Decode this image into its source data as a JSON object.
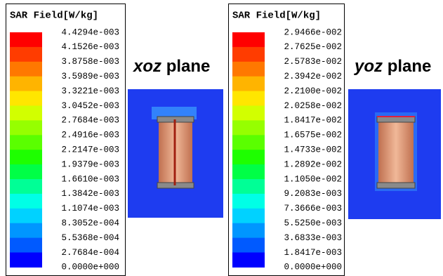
{
  "colors": [
    "#ff0000",
    "#ff3c00",
    "#ff7800",
    "#ffb400",
    "#ffe600",
    "#d2ff00",
    "#96ff00",
    "#5aff00",
    "#1eff00",
    "#00ff46",
    "#00ff96",
    "#00ffe6",
    "#00d2ff",
    "#0096ff",
    "#005aff",
    "#0000ff"
  ],
  "legends": [
    {
      "title": "SAR Field[W/kg]",
      "labels": [
        "4.4294e-003",
        "4.1526e-003",
        "3.8758e-003",
        "3.5989e-003",
        "3.3221e-003",
        "3.0452e-003",
        "2.7684e-003",
        "2.4916e-003",
        "2.2147e-003",
        "1.9379e-003",
        "1.6610e-003",
        "1.3842e-003",
        "1.1074e-003",
        "8.3052e-004",
        "5.5368e-004",
        "2.7684e-004",
        "0.0000e+000"
      ]
    },
    {
      "title": "SAR Field[W/kg]",
      "labels": [
        "2.9466e-002",
        "2.7625e-002",
        "2.5783e-002",
        "2.3942e-002",
        "2.2100e-002",
        "2.0258e-002",
        "1.8417e-002",
        "1.6575e-002",
        "1.4733e-002",
        "1.2892e-002",
        "1.1050e-002",
        "9.2083e-003",
        "7.3666e-003",
        "5.5250e-003",
        "3.6833e-003",
        "1.8417e-003",
        "0.0000e+000"
      ]
    }
  ],
  "panels": [
    {
      "plane": "xoz",
      "word": "plane"
    },
    {
      "plane": "yoz",
      "word": "plane"
    }
  ]
}
